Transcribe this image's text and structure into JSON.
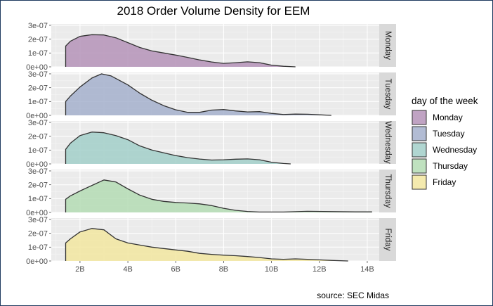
{
  "chart_data": {
    "type": "area",
    "title": "2018 Order Volume Density for EEM",
    "caption": "source: SEC Midas",
    "xlabel": "",
    "ylabel": "",
    "x_range": [
      0.8,
      14.5
    ],
    "x_ticks": [
      2,
      4,
      6,
      8,
      10,
      12,
      14
    ],
    "x_tick_labels": [
      "2B",
      "4B",
      "6B",
      "8B",
      "10B",
      "12B",
      "14B"
    ],
    "y_range": [
      0,
      3.1
    ],
    "y_ticks": [
      0,
      1,
      2,
      3
    ],
    "y_tick_labels": [
      "0e+00",
      "1e-07",
      "2e-07",
      "3e-07"
    ],
    "legend_title": "day of the week",
    "legend_position": "right",
    "series": [
      {
        "name": "Monday",
        "color": "#b593b9",
        "points": [
          [
            1.4,
            1.5
          ],
          [
            1.6,
            1.85
          ],
          [
            2.0,
            2.2
          ],
          [
            2.5,
            2.32
          ],
          [
            3.0,
            2.3
          ],
          [
            3.5,
            2.1
          ],
          [
            4.0,
            1.75
          ],
          [
            4.5,
            1.4
          ],
          [
            5.0,
            1.15
          ],
          [
            5.5,
            1.0
          ],
          [
            6.0,
            0.85
          ],
          [
            6.5,
            0.68
          ],
          [
            7.0,
            0.5
          ],
          [
            7.5,
            0.35
          ],
          [
            8.0,
            0.25
          ],
          [
            8.5,
            0.3
          ],
          [
            9.0,
            0.36
          ],
          [
            9.5,
            0.3
          ],
          [
            10.0,
            0.12
          ],
          [
            10.5,
            0.04
          ],
          [
            11.0,
            0.0
          ]
        ]
      },
      {
        "name": "Tuesday",
        "color": "#a5b0cc",
        "points": [
          [
            1.4,
            1.0
          ],
          [
            1.6,
            1.4
          ],
          [
            2.0,
            2.05
          ],
          [
            2.5,
            2.7
          ],
          [
            2.9,
            3.0
          ],
          [
            3.3,
            2.85
          ],
          [
            4.0,
            2.2
          ],
          [
            4.5,
            1.6
          ],
          [
            5.0,
            1.1
          ],
          [
            5.5,
            0.7
          ],
          [
            6.0,
            0.4
          ],
          [
            6.5,
            0.22
          ],
          [
            7.0,
            0.22
          ],
          [
            7.5,
            0.38
          ],
          [
            8.0,
            0.42
          ],
          [
            8.5,
            0.32
          ],
          [
            9.0,
            0.25
          ],
          [
            9.5,
            0.27
          ],
          [
            10.0,
            0.14
          ],
          [
            10.5,
            0.06
          ],
          [
            11.0,
            0.09
          ],
          [
            11.5,
            0.08
          ],
          [
            12.0,
            0.04
          ],
          [
            12.5,
            0.0
          ]
        ]
      },
      {
        "name": "Wednesday",
        "color": "#a2cfc9",
        "points": [
          [
            1.4,
            1.05
          ],
          [
            1.6,
            1.5
          ],
          [
            2.0,
            2.05
          ],
          [
            2.5,
            2.3
          ],
          [
            3.0,
            2.25
          ],
          [
            3.5,
            2.05
          ],
          [
            4.0,
            1.75
          ],
          [
            4.5,
            1.3
          ],
          [
            5.0,
            1.0
          ],
          [
            5.5,
            0.8
          ],
          [
            6.0,
            0.6
          ],
          [
            6.5,
            0.45
          ],
          [
            7.0,
            0.35
          ],
          [
            7.5,
            0.28
          ],
          [
            8.0,
            0.3
          ],
          [
            8.5,
            0.34
          ],
          [
            9.0,
            0.36
          ],
          [
            9.5,
            0.3
          ],
          [
            10.0,
            0.12
          ],
          [
            10.5,
            0.03
          ],
          [
            10.8,
            0.0
          ]
        ]
      },
      {
        "name": "Thursday",
        "color": "#b4dcb4",
        "points": [
          [
            1.4,
            0.95
          ],
          [
            1.6,
            1.2
          ],
          [
            2.0,
            1.55
          ],
          [
            2.5,
            1.95
          ],
          [
            3.0,
            2.35
          ],
          [
            3.5,
            2.2
          ],
          [
            4.0,
            1.7
          ],
          [
            4.5,
            1.25
          ],
          [
            5.0,
            0.95
          ],
          [
            5.5,
            0.8
          ],
          [
            6.0,
            0.72
          ],
          [
            6.5,
            0.68
          ],
          [
            7.0,
            0.62
          ],
          [
            7.5,
            0.5
          ],
          [
            8.0,
            0.3
          ],
          [
            8.5,
            0.15
          ],
          [
            9.0,
            0.07
          ],
          [
            9.5,
            0.03
          ],
          [
            10.5,
            0.03
          ],
          [
            11.5,
            0.08
          ],
          [
            12.5,
            0.06
          ],
          [
            13.5,
            0.04
          ],
          [
            14.2,
            0.04
          ]
        ]
      },
      {
        "name": "Friday",
        "color": "#f2e6a0",
        "points": [
          [
            1.4,
            1.3
          ],
          [
            1.6,
            1.6
          ],
          [
            2.0,
            2.1
          ],
          [
            2.5,
            2.35
          ],
          [
            3.0,
            2.25
          ],
          [
            3.5,
            1.6
          ],
          [
            4.0,
            1.3
          ],
          [
            4.5,
            1.15
          ],
          [
            5.0,
            1.0
          ],
          [
            5.5,
            0.9
          ],
          [
            6.0,
            0.8
          ],
          [
            6.5,
            0.7
          ],
          [
            7.0,
            0.55
          ],
          [
            7.5,
            0.48
          ],
          [
            8.0,
            0.42
          ],
          [
            8.5,
            0.38
          ],
          [
            9.0,
            0.32
          ],
          [
            9.5,
            0.25
          ],
          [
            10.0,
            0.15
          ],
          [
            10.5,
            0.12
          ],
          [
            11.0,
            0.15
          ],
          [
            11.5,
            0.12
          ],
          [
            12.0,
            0.08
          ],
          [
            12.5,
            0.04
          ],
          [
            13.2,
            0.0
          ]
        ]
      }
    ]
  }
}
